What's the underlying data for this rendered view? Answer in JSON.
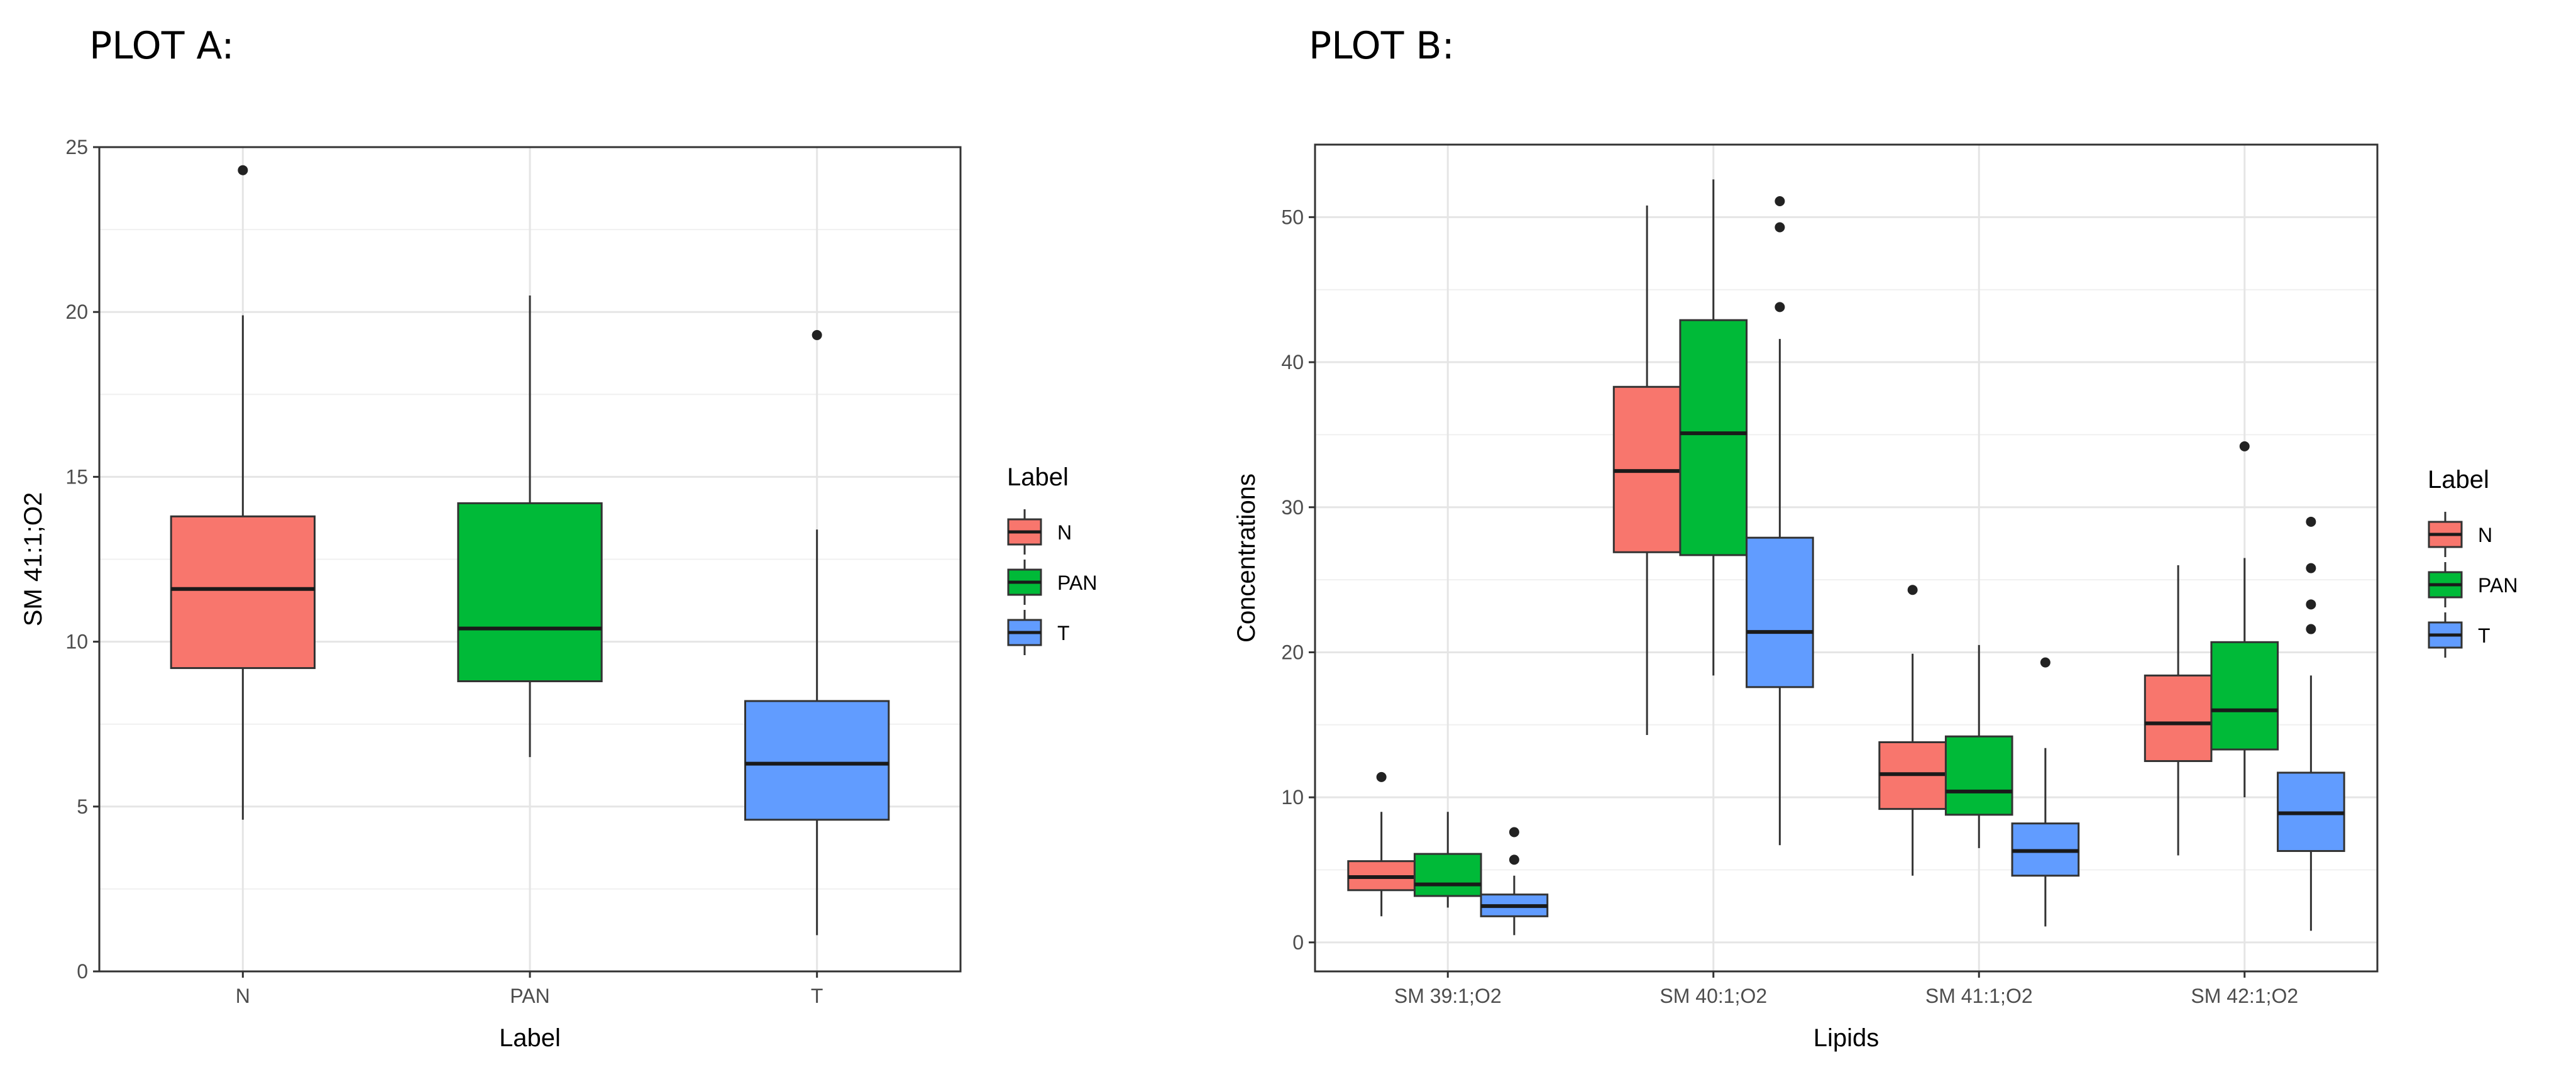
{
  "chart_data": [
    {
      "type": "box",
      "title": "PLOT A:",
      "xlabel": "Label",
      "ylabel": "SM 41:1;O2",
      "ylim": [
        0,
        25
      ],
      "yticks": [
        0,
        5,
        10,
        15,
        20,
        25
      ],
      "categories": [
        "N",
        "PAN",
        "T"
      ],
      "grid": true,
      "legend": {
        "title": "Label",
        "position": "right",
        "entries": [
          "N",
          "PAN",
          "T"
        ]
      },
      "series": [
        {
          "name": "N",
          "color": "#F8766D",
          "boxes": [
            {
              "category": "N",
              "min": 4.6,
              "q1": 9.2,
              "median": 11.6,
              "q3": 13.8,
              "max": 19.9,
              "outliers": [
                24.3
              ]
            }
          ]
        },
        {
          "name": "PAN",
          "color": "#00BA38",
          "boxes": [
            {
              "category": "PAN",
              "min": 6.5,
              "q1": 8.8,
              "median": 10.4,
              "q3": 14.2,
              "max": 20.5,
              "outliers": []
            }
          ]
        },
        {
          "name": "T",
          "color": "#619CFF",
          "boxes": [
            {
              "category": "T",
              "min": 1.1,
              "q1": 4.6,
              "median": 6.3,
              "q3": 8.2,
              "max": 13.4,
              "outliers": [
                19.3
              ]
            }
          ]
        }
      ]
    },
    {
      "type": "box",
      "title": "PLOT B:",
      "xlabel": "Lipids",
      "ylabel": "Concentrations",
      "ylim": [
        -2,
        55
      ],
      "yticks": [
        0,
        10,
        20,
        30,
        40,
        50
      ],
      "categories": [
        "SM 39:1;O2",
        "SM 40:1;O2",
        "SM 41:1;O2",
        "SM 42:1;O2"
      ],
      "grid": true,
      "legend": {
        "title": "Label",
        "position": "right",
        "entries": [
          "N",
          "PAN",
          "T"
        ]
      },
      "series": [
        {
          "name": "N",
          "color": "#F8766D",
          "boxes": [
            {
              "category": "SM 39:1;O2",
              "min": 1.8,
              "q1": 3.6,
              "median": 4.5,
              "q3": 5.6,
              "max": 9.0,
              "outliers": [
                11.4
              ]
            },
            {
              "category": "SM 40:1;O2",
              "min": 14.3,
              "q1": 26.9,
              "median": 32.5,
              "q3": 38.3,
              "max": 50.8,
              "outliers": []
            },
            {
              "category": "SM 41:1;O2",
              "min": 4.6,
              "q1": 9.2,
              "median": 11.6,
              "q3": 13.8,
              "max": 19.9,
              "outliers": [
                24.3
              ]
            },
            {
              "category": "SM 42:1;O2",
              "min": 6.0,
              "q1": 12.5,
              "median": 15.1,
              "q3": 18.4,
              "max": 26.0,
              "outliers": []
            }
          ]
        },
        {
          "name": "PAN",
          "color": "#00BA38",
          "boxes": [
            {
              "category": "SM 39:1;O2",
              "min": 2.4,
              "q1": 3.2,
              "median": 4.0,
              "q3": 6.1,
              "max": 9.0,
              "outliers": []
            },
            {
              "category": "SM 40:1;O2",
              "min": 18.4,
              "q1": 26.7,
              "median": 35.1,
              "q3": 42.9,
              "max": 52.6,
              "outliers": []
            },
            {
              "category": "SM 41:1;O2",
              "min": 6.5,
              "q1": 8.8,
              "median": 10.4,
              "q3": 14.2,
              "max": 20.5,
              "outliers": []
            },
            {
              "category": "SM 42:1;O2",
              "min": 10.0,
              "q1": 13.3,
              "median": 16.0,
              "q3": 20.7,
              "max": 26.5,
              "outliers": [
                34.2
              ]
            }
          ]
        },
        {
          "name": "T",
          "color": "#619CFF",
          "boxes": [
            {
              "category": "SM 39:1;O2",
              "min": 0.5,
              "q1": 1.8,
              "median": 2.5,
              "q3": 3.3,
              "max": 4.6,
              "outliers": [
                5.7,
                7.6
              ]
            },
            {
              "category": "SM 40:1;O2",
              "min": 6.7,
              "q1": 17.6,
              "median": 21.4,
              "q3": 27.9,
              "max": 41.6,
              "outliers": [
                43.8,
                49.3,
                51.1
              ]
            },
            {
              "category": "SM 41:1;O2",
              "min": 1.1,
              "q1": 4.6,
              "median": 6.3,
              "q3": 8.2,
              "max": 13.4,
              "outliers": [
                19.3
              ]
            },
            {
              "category": "SM 42:1;O2",
              "min": 0.8,
              "q1": 6.3,
              "median": 8.9,
              "q3": 11.7,
              "max": 18.4,
              "outliers": [
                21.6,
                23.3,
                25.8,
                29.0
              ]
            }
          ]
        }
      ]
    }
  ]
}
